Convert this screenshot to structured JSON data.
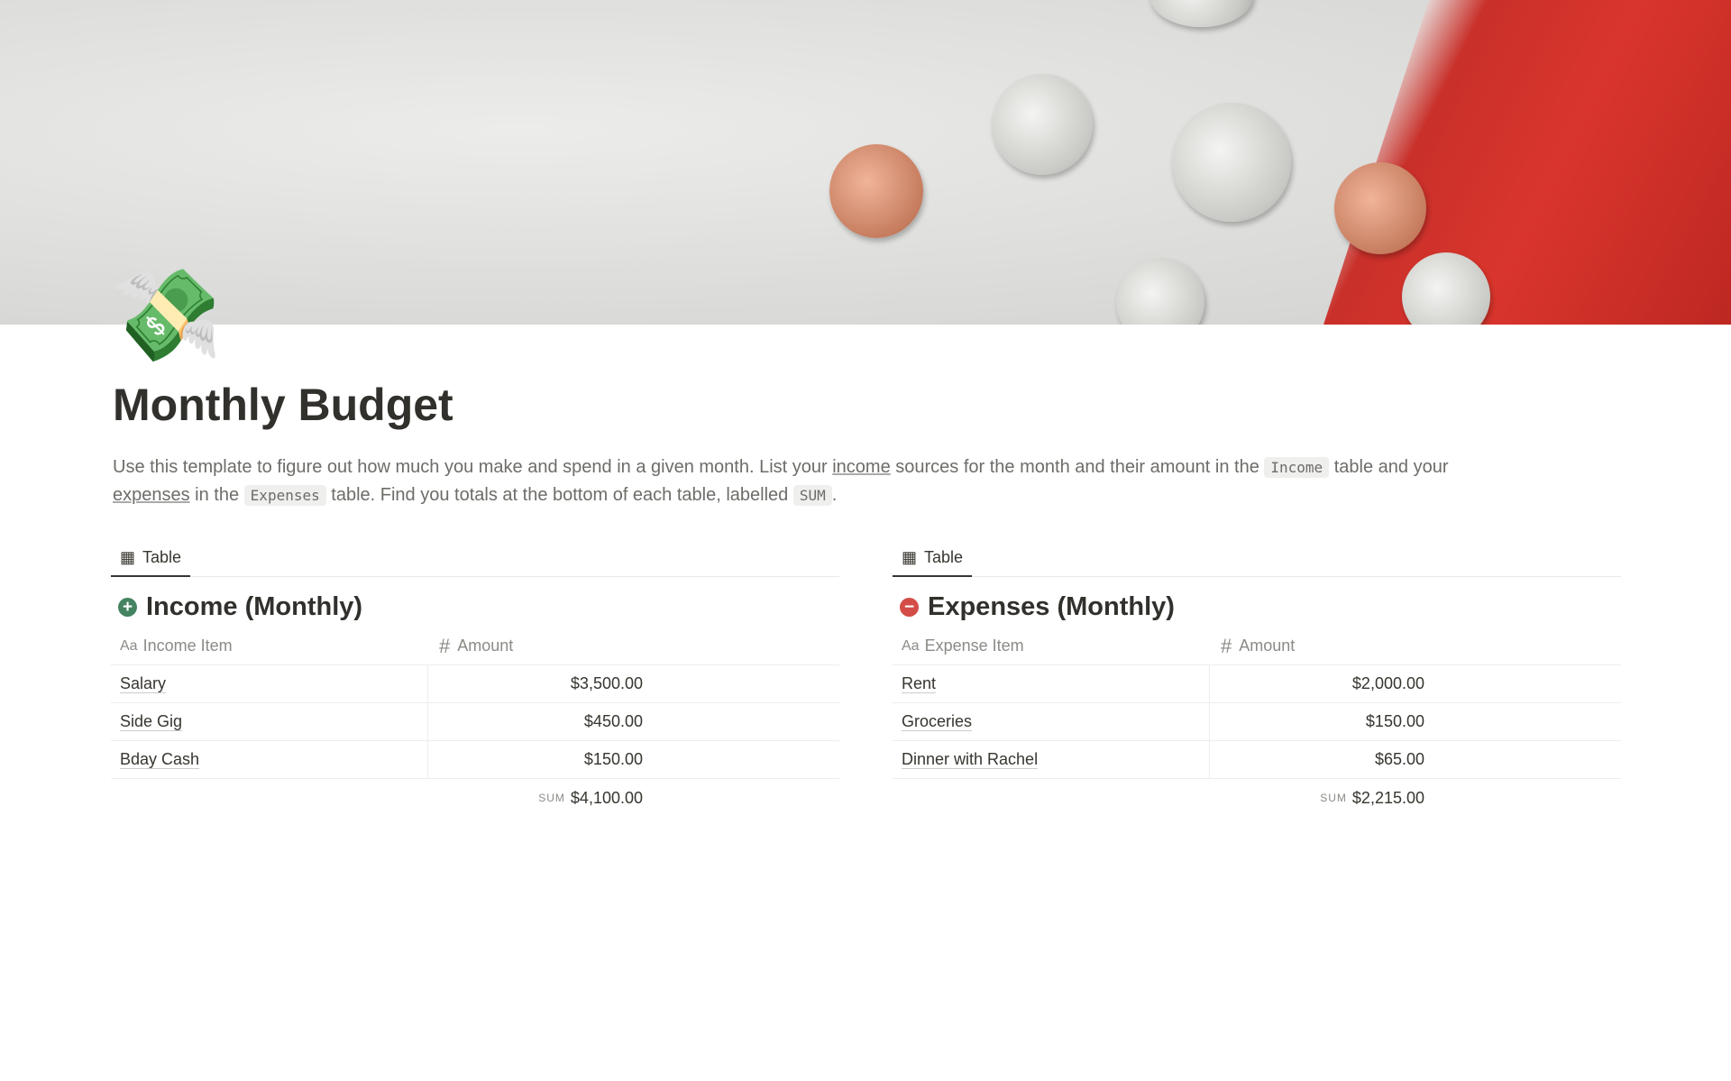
{
  "page": {
    "title": "Monthly Budget",
    "icon": "money-with-wings-emoji",
    "description": {
      "p1": "Use this template to figure out how much you make and spend in a given month. List your ",
      "link1": "income",
      "p2": " sources for the month and their amount in the ",
      "code1": "Income",
      "p3": " table and your ",
      "link2": "expenses",
      "p4": " in the ",
      "code2": "Expenses",
      "p5": " table. Find you totals at the bottom of each table, labelled ",
      "code3": "SUM",
      "p6": "."
    }
  },
  "income": {
    "tab": "Table",
    "title": "Income (Monthly)",
    "accent": "#448361",
    "col1": "Income Item",
    "col2": "Amount",
    "rows": [
      {
        "item": "Salary",
        "amount": "$3,500.00"
      },
      {
        "item": "Side Gig",
        "amount": "$450.00"
      },
      {
        "item": "Bday Cash",
        "amount": "$150.00"
      }
    ],
    "sum_label": "SUM",
    "sum": "$4,100.00"
  },
  "expenses": {
    "tab": "Table",
    "title": "Expenses (Monthly)",
    "accent": "#d44c47",
    "col1": "Expense Item",
    "col2": "Amount",
    "rows": [
      {
        "item": "Rent",
        "amount": "$2,000.00"
      },
      {
        "item": "Groceries",
        "amount": "$150.00"
      },
      {
        "item": "Dinner with Rachel",
        "amount": "$65.00"
      }
    ],
    "sum_label": "SUM",
    "sum": "$2,215.00"
  }
}
